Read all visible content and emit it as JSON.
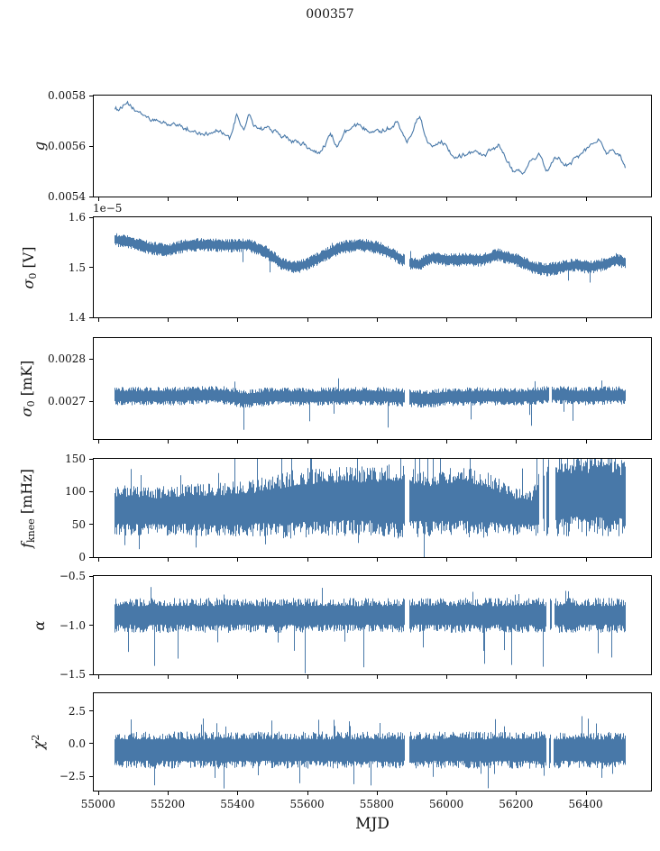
{
  "chart_data": {
    "type": "line",
    "title": "000357",
    "xlabel": "MJD",
    "line_color": "#4878a8",
    "axis_color": "#000000",
    "xlim": [
      54985,
      56590
    ],
    "x_ticks": [
      55000,
      55200,
      55400,
      55600,
      55800,
      56000,
      56200,
      56400
    ],
    "x_tick_labels": [
      "55000",
      "55200",
      "55400",
      "55600",
      "55800",
      "56000",
      "56200",
      "56400"
    ],
    "data_x_range": [
      55045,
      56515
    ],
    "panels": [
      {
        "name": "g",
        "ylabel": "g",
        "ylabel_parts": [
          [
            "g",
            "i"
          ]
        ],
        "ylim": [
          0.0054,
          0.0058
        ],
        "yticks": [
          {
            "v": 0.0054,
            "l": "0.0054"
          },
          {
            "v": 0.0056,
            "l": "0.0056"
          },
          {
            "v": 0.0058,
            "l": "0.0058"
          }
        ],
        "style": "wander",
        "noise": 7e-06,
        "gaps": [],
        "trend": {
          "x": [
            55045,
            55080,
            55110,
            55160,
            55220,
            55300,
            55340,
            55375,
            55395,
            55415,
            55430,
            55445,
            55490,
            55540,
            55575,
            55612,
            55640,
            55665,
            55685,
            55710,
            55745,
            55790,
            55830,
            55858,
            55885,
            55922,
            55945,
            55985,
            56025,
            56065,
            56105,
            56150,
            56190,
            56220,
            56245,
            56270,
            56285,
            56310,
            56340,
            56375,
            56410,
            56440,
            56460,
            56480,
            56500,
            56515
          ],
          "y": [
            0.00575,
            0.00576,
            0.00573,
            0.0057,
            0.00568,
            0.00565,
            0.00567,
            0.00562,
            0.00572,
            0.00566,
            0.00572,
            0.00567,
            0.00567,
            0.00563,
            0.00561,
            0.00558,
            0.00559,
            0.00565,
            0.0056,
            0.00565,
            0.00567,
            0.00567,
            0.00567,
            0.00571,
            0.00563,
            0.00572,
            0.00561,
            0.00563,
            0.00556,
            0.00558,
            0.00557,
            0.00559,
            0.00551,
            0.00548,
            0.00553,
            0.00556,
            0.0055,
            0.00554,
            0.00553,
            0.00556,
            0.00559,
            0.00563,
            0.00559,
            0.00561,
            0.00558,
            0.00551
          ]
        }
      },
      {
        "name": "sigma0-V",
        "ylabel": "σ0 [V]",
        "ylabel_parts": [
          [
            "σ",
            "i"
          ],
          [
            "0",
            "sub"
          ],
          [
            " [V]",
            "n"
          ]
        ],
        "offset_text": "1e−5",
        "ylim": [
          1.4,
          1.6
        ],
        "yticks": [
          {
            "v": 1.4,
            "l": "1.4"
          },
          {
            "v": 1.5,
            "l": "1.5"
          },
          {
            "v": 1.6,
            "l": "1.6"
          }
        ],
        "style": "band",
        "amp": 0.013,
        "spikes": {
          "up_p": 0.004,
          "up_a": 1.3,
          "up_b": 0.8,
          "dn_p": 0.006,
          "dn_a": 1.6,
          "dn_b": 1.6
        },
        "gaps": [
          [
            55880,
            55892
          ]
        ],
        "trend": {
          "x": [
            55045,
            55090,
            55150,
            55200,
            55260,
            55320,
            55380,
            55430,
            55480,
            55530,
            55570,
            55610,
            55650,
            55700,
            55750,
            55800,
            55850,
            55885,
            55920,
            55960,
            56000,
            56050,
            56100,
            56150,
            56200,
            56250,
            56290,
            56330,
            56370,
            56410,
            56450,
            56490,
            56515
          ],
          "y": [
            1.555,
            1.55,
            1.538,
            1.535,
            1.545,
            1.545,
            1.543,
            1.545,
            1.53,
            1.505,
            1.5,
            1.51,
            1.525,
            1.54,
            1.545,
            1.54,
            1.525,
            1.51,
            1.505,
            1.52,
            1.515,
            1.515,
            1.515,
            1.525,
            1.515,
            1.5,
            1.495,
            1.5,
            1.505,
            1.5,
            1.505,
            1.515,
            1.51
          ]
        }
      },
      {
        "name": "sigma0-mK",
        "ylabel": "σ0 [mK]",
        "ylabel_parts": [
          [
            "σ",
            "i"
          ],
          [
            "0",
            "sub"
          ],
          [
            " [mK]",
            "n"
          ]
        ],
        "ylim": [
          0.00261,
          0.00285
        ],
        "yticks": [
          {
            "v": 0.0027,
            "l": "0.0027"
          },
          {
            "v": 0.0028,
            "l": "0.0028"
          }
        ],
        "style": "band",
        "amp": 2.1e-05,
        "spikes": {
          "up_p": 0.004,
          "up_a": 1.5,
          "up_b": 0.6,
          "dn_p": 0.01,
          "dn_a": 1.8,
          "dn_b": 1.8
        },
        "gaps": [
          [
            55880,
            55892
          ],
          [
            56295,
            56303
          ]
        ],
        "trend": {
          "x": [
            55045,
            55200,
            55350,
            55420,
            55500,
            55600,
            55700,
            55800,
            55900,
            55950,
            56000,
            56100,
            56200,
            56300,
            56400,
            56500,
            56515
          ],
          "y": [
            0.002712,
            0.002712,
            0.002715,
            0.002705,
            0.002712,
            0.00271,
            0.002712,
            0.002712,
            0.002708,
            0.002705,
            0.00271,
            0.002712,
            0.00271,
            0.002715,
            0.002712,
            0.002714,
            0.002712
          ]
        }
      },
      {
        "name": "f-knee",
        "ylabel": "fknee [mHz]",
        "ylabel_parts": [
          [
            "f",
            "i"
          ],
          [
            "knee",
            "sub"
          ],
          [
            " [mHz]",
            "n"
          ]
        ],
        "ylim": [
          0,
          150
        ],
        "yticks": [
          {
            "v": 0,
            "l": "0"
          },
          {
            "v": 50,
            "l": "50"
          },
          {
            "v": 100,
            "l": "100"
          },
          {
            "v": 150,
            "l": "150"
          }
        ],
        "style": "band",
        "amp": [
          38,
          35,
          38,
          40,
          42,
          50,
          52,
          52,
          55,
          48,
          52,
          48,
          35,
          33,
          58,
          60,
          60,
          58,
          55
        ],
        "spikes": {
          "up_p": 0.045,
          "up_a": 1.3,
          "up_b": 1.1,
          "dn_p": 0.01,
          "dn_a": 1.2,
          "dn_b": 0.7
        },
        "gaps": [
          [
            55880,
            55892
          ],
          [
            56267,
            56277
          ],
          [
            56282,
            56287
          ],
          [
            56296,
            56314
          ]
        ],
        "trend": {
          "x": [
            55045,
            55150,
            55250,
            55350,
            55450,
            55550,
            55650,
            55750,
            55850,
            55950,
            56050,
            56120,
            56190,
            56250,
            56270,
            56330,
            56400,
            56460,
            56515
          ],
          "y": [
            72,
            70,
            72,
            72,
            75,
            80,
            85,
            85,
            85,
            82,
            85,
            80,
            70,
            68,
            90,
            95,
            95,
            92,
            90
          ]
        }
      },
      {
        "name": "alpha",
        "ylabel": "α",
        "ylabel_parts": [
          [
            "α",
            "i"
          ]
        ],
        "ylim": [
          -1.5,
          -0.5
        ],
        "yticks": [
          {
            "v": -1.5,
            "l": "−1.5"
          },
          {
            "v": -1.0,
            "l": "−1.0"
          },
          {
            "v": -0.5,
            "l": "−0.5"
          }
        ],
        "style": "band",
        "amp": 0.17,
        "spikes": {
          "up_p": 0.012,
          "up_a": 1.2,
          "up_b": 0.5,
          "dn_p": 0.03,
          "dn_a": 1.5,
          "dn_b": 2.0
        },
        "gaps": [
          [
            55880,
            55892
          ],
          [
            56287,
            56297
          ],
          [
            56303,
            56311
          ]
        ],
        "trend": {
          "x": [
            55045,
            56515
          ],
          "y": [
            -0.9,
            -0.9
          ]
        }
      },
      {
        "name": "chi2",
        "ylabel": "χ2",
        "ylabel_parts": [
          [
            "χ",
            "i"
          ],
          [
            "2",
            "sup"
          ]
        ],
        "ylim": [
          -3.6,
          3.85
        ],
        "yticks": [
          {
            "v": -2.5,
            "l": "−2.5"
          },
          {
            "v": 0.0,
            "l": "0.0"
          },
          {
            "v": 2.5,
            "l": "2.5"
          }
        ],
        "style": "band",
        "amp": 1.35,
        "band": [
          0.6,
          0.45
        ],
        "spikes": {
          "up_p": 0.025,
          "up_a": 1.3,
          "up_b": 0.9,
          "dn_p": 0.025,
          "dn_a": 1.3,
          "dn_b": 0.9
        },
        "gaps": [
          [
            55880,
            55892
          ],
          [
            56287,
            56295
          ],
          [
            56301,
            56308
          ]
        ],
        "trend": {
          "x": [
            55045,
            56515
          ],
          "y": [
            -0.5,
            -0.5
          ]
        }
      }
    ]
  }
}
